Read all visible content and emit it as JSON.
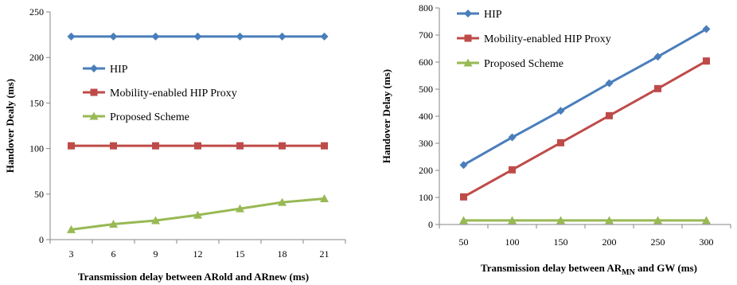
{
  "chart_data": [
    {
      "type": "line",
      "title": "",
      "xlabel": "Transmission delay between ARold and ARnew (ms)",
      "ylabel": "Handover Dealy (ms)",
      "categories": [
        "3",
        "6",
        "9",
        "12",
        "15",
        "18",
        "21"
      ],
      "ylim": [
        0,
        250
      ],
      "yticks": [
        "0",
        "50",
        "100",
        "150",
        "200",
        "250"
      ],
      "grid": false,
      "legend_position": "center-left",
      "series": [
        {
          "name": "HIP",
          "color": "#4a7ebb",
          "marker": "diamond",
          "values": [
            223,
            223,
            223,
            223,
            223,
            223,
            223
          ]
        },
        {
          "name": "Mobility-enabled HIP Proxy",
          "color": "#be4b48",
          "marker": "square",
          "values": [
            103,
            103,
            103,
            103,
            103,
            103,
            103
          ]
        },
        {
          "name": "Proposed Scheme",
          "color": "#98b954",
          "marker": "triangle",
          "values": [
            11,
            17,
            21,
            27,
            34,
            41,
            45
          ]
        }
      ]
    },
    {
      "type": "line",
      "title": "",
      "xlabel_parts": [
        "Transmission delay between AR",
        "MN",
        " and GW (ms)"
      ],
      "ylabel": "Handover Delay (ms)",
      "categories": [
        "50",
        "100",
        "150",
        "200",
        "250",
        "300"
      ],
      "ylim": [
        0,
        800
      ],
      "yticks": [
        "0",
        "100",
        "200",
        "300",
        "400",
        "500",
        "600",
        "700",
        "800"
      ],
      "grid": false,
      "legend_position": "top-left",
      "series": [
        {
          "name": "HIP",
          "color": "#4a7ebb",
          "marker": "diamond",
          "values": [
            220,
            322,
            420,
            522,
            620,
            722
          ]
        },
        {
          "name": "Mobility-enabled HIP Proxy",
          "color": "#be4b48",
          "marker": "square",
          "values": [
            102,
            202,
            302,
            402,
            502,
            604
          ]
        },
        {
          "name": "Proposed Scheme",
          "color": "#98b954",
          "marker": "triangle",
          "values": [
            15,
            15,
            15,
            15,
            15,
            15
          ]
        }
      ]
    }
  ]
}
